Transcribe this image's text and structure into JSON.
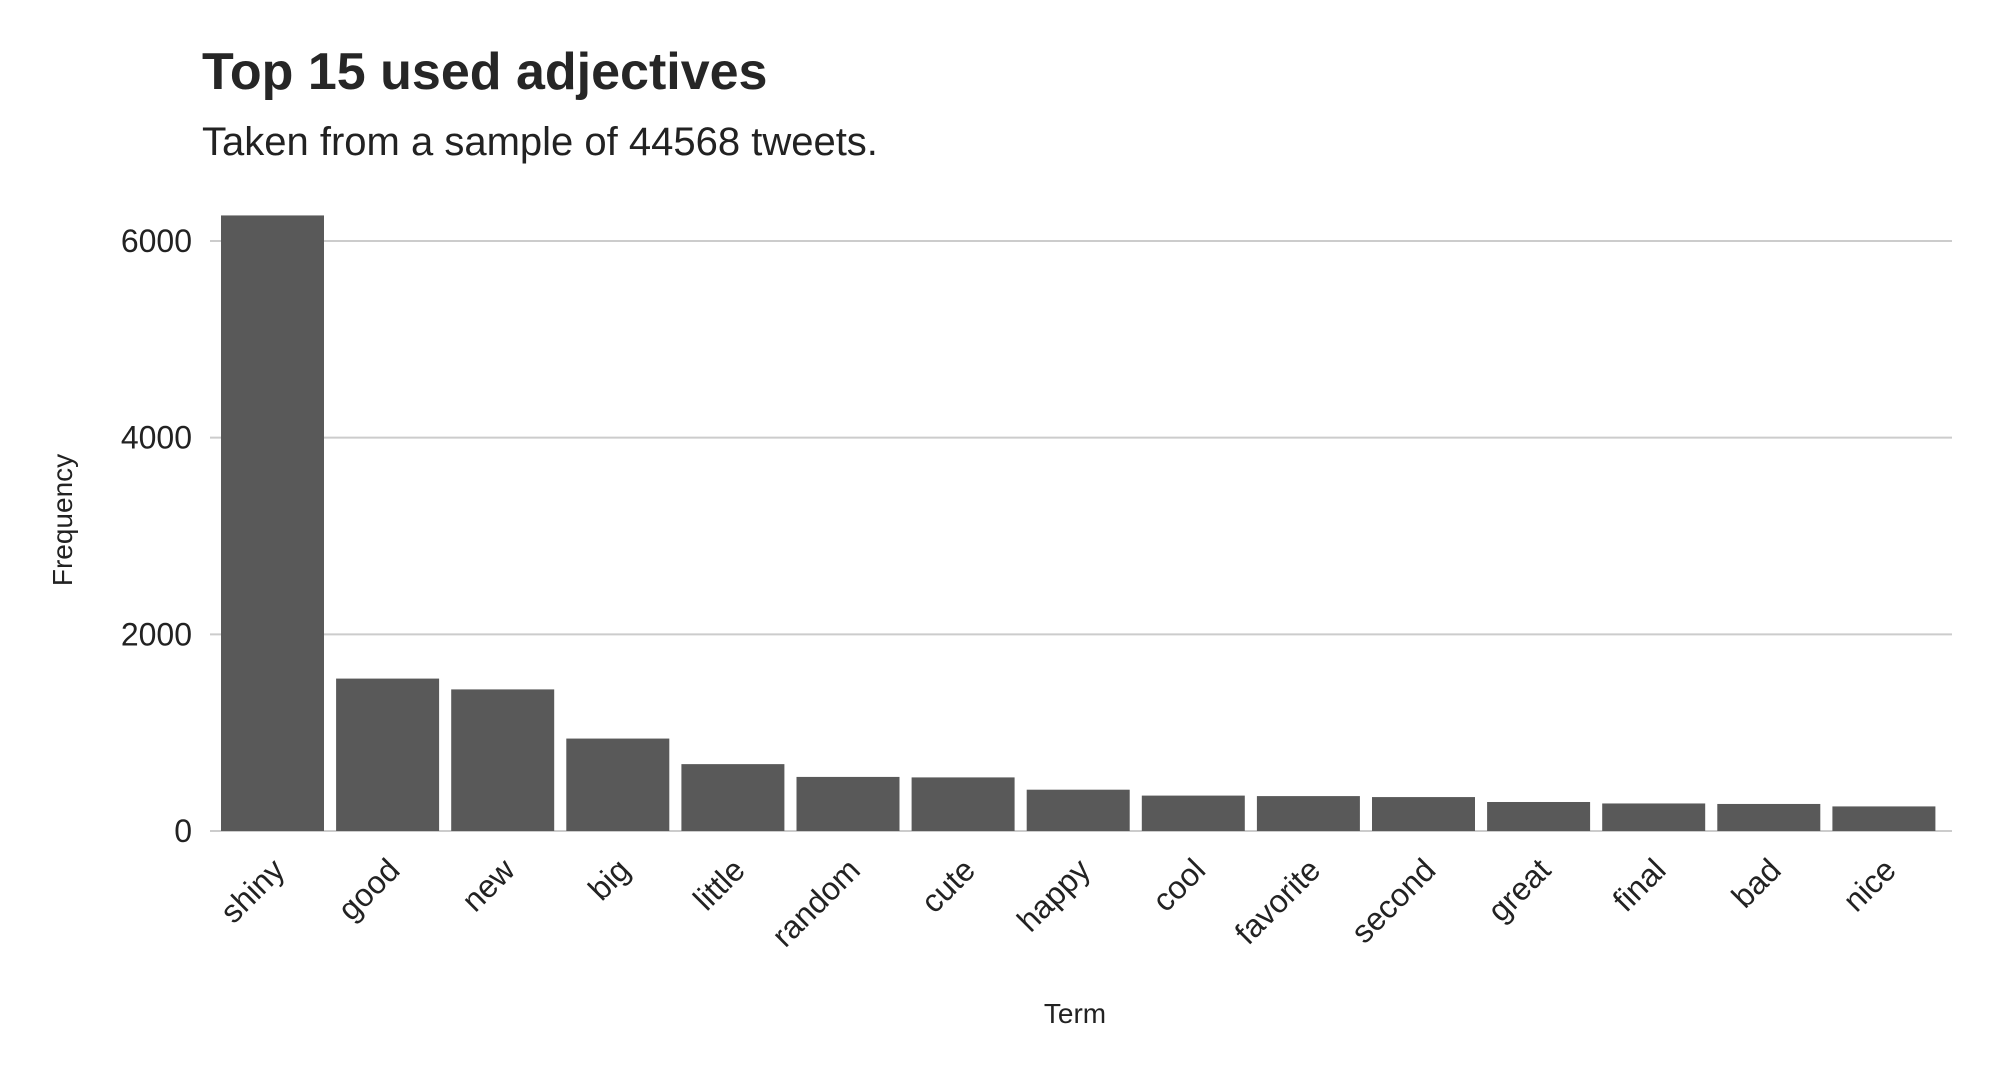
{
  "chart_data": {
    "type": "bar",
    "title": "Top 15 used adjectives",
    "subtitle": "Taken from a sample of 44568 tweets.",
    "xlabel": "Term",
    "ylabel": "Frequency",
    "categories": [
      "shiny",
      "good",
      "new",
      "big",
      "little",
      "random",
      "cute",
      "happy",
      "cool",
      "favorite",
      "second",
      "great",
      "final",
      "bad",
      "nice"
    ],
    "values": [
      6260,
      1550,
      1440,
      940,
      680,
      550,
      545,
      420,
      360,
      355,
      345,
      295,
      280,
      275,
      250
    ],
    "ylim": [
      0,
      6400
    ],
    "yticks": [
      0,
      2000,
      4000,
      6000
    ],
    "grid": "horizontal",
    "legend": "none",
    "bar_color": "#595959",
    "grid_color": "#cccccc"
  }
}
